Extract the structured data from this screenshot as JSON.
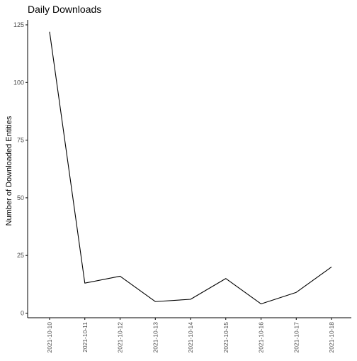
{
  "chart_data": {
    "type": "line",
    "title": "Daily Downloads",
    "xlabel": "",
    "ylabel": "Number of Downloaded Entities",
    "x": [
      "2021-10-10",
      "2021-10-11",
      "2021-10-12",
      "2021-10-13",
      "2021-10-14",
      "2021-10-15",
      "2021-10-16",
      "2021-10-17",
      "2021-10-18"
    ],
    "values": [
      122,
      13,
      16,
      5,
      6,
      15,
      4,
      9,
      20
    ],
    "yticks": [
      0,
      25,
      50,
      75,
      100,
      125
    ],
    "ylim": [
      0,
      125
    ],
    "grid": false,
    "line_color": "#000000",
    "axis_color": "#000000",
    "tick_label_color": "#4d4d4d"
  }
}
